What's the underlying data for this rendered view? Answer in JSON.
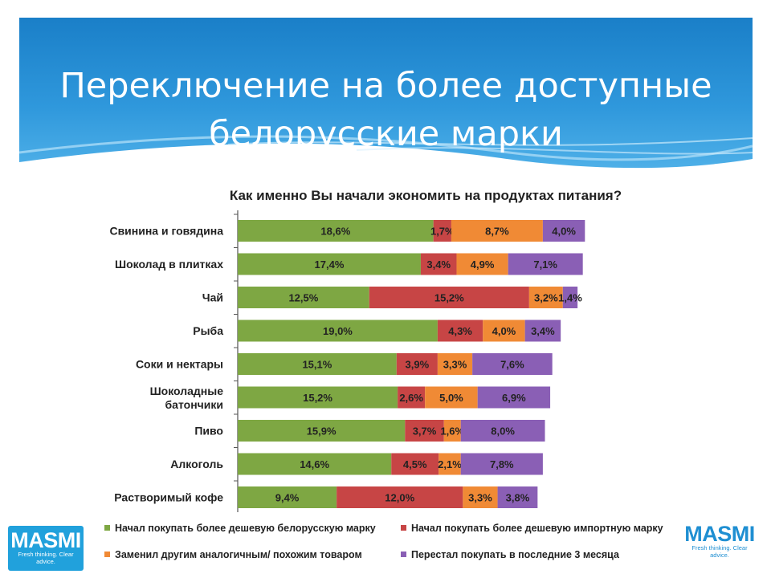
{
  "slide": {
    "title_lines": [
      "Переключение на более доступные",
      "белорусские марки"
    ]
  },
  "logos": {
    "left": {
      "word": "MASMI",
      "tagline": "Fresh thinking. Clear advice."
    },
    "right": {
      "word": "MASMI",
      "tagline": "Fresh thinking. Clear advice."
    }
  },
  "chart_data": {
    "type": "bar",
    "orientation": "horizontal",
    "stacked": true,
    "title": "Как именно Вы начали экономить на продуктах питания?",
    "categories": [
      "Свинина и говядина",
      "Шоколад в плитках",
      "Чай",
      "Рыба",
      "Соки и нектары",
      "Шоколадные батончики",
      "Пиво",
      "Алкоголь",
      "Растворимый кофе"
    ],
    "series": [
      {
        "name": "Начал покупать более дешевую белорусскую марку",
        "color": "#7ea743",
        "values": [
          18.6,
          17.4,
          12.5,
          19.0,
          15.1,
          15.2,
          15.9,
          14.6,
          9.4
        ],
        "labels": [
          "18,6%",
          "17,4%",
          "12,5%",
          "19,0%",
          "15,1%",
          "15,2%",
          "15,9%",
          "14,6%",
          "9,4%"
        ]
      },
      {
        "name": "Начал покупать более дешевую импортную марку",
        "color": "#c74545",
        "values": [
          1.7,
          3.4,
          15.2,
          4.3,
          3.9,
          2.6,
          3.7,
          4.5,
          12.0
        ],
        "labels": [
          "1,7%",
          "3,4%",
          "15,2%",
          "4,3%",
          "3,9%",
          "2,6%",
          "3,7%",
          "4,5%",
          "12,0%"
        ]
      },
      {
        "name": "Заменил другим аналогичным/ похожим товаром",
        "color": "#f08a35",
        "values": [
          8.7,
          4.9,
          3.2,
          4.0,
          3.3,
          5.0,
          1.6,
          2.1,
          3.3
        ],
        "labels": [
          "8,7%",
          "4,9%",
          "3,2%",
          "4,0%",
          "3,3%",
          "5,0%",
          "1,6%",
          "2,1%",
          "3,3%"
        ]
      },
      {
        "name": "Перестал покупать в последние 3 месяца",
        "color": "#8a5fb5",
        "values": [
          4.0,
          7.1,
          1.4,
          3.4,
          7.6,
          6.9,
          8.0,
          7.8,
          3.8
        ],
        "labels": [
          "4,0%",
          "7,1%",
          "1,4%",
          "3,4%",
          "7,6%",
          "6,9%",
          "8,0%",
          "7,8%",
          "3,8%"
        ]
      }
    ],
    "legend_position": "bottom",
    "grid": false
  }
}
